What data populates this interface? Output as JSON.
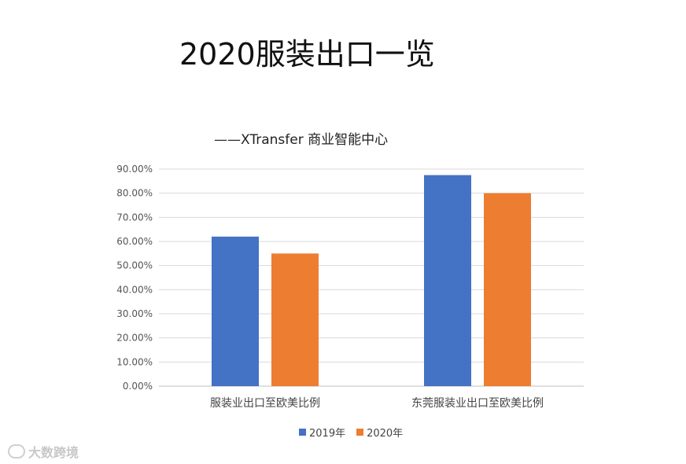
{
  "page": {
    "title": "2020服装出口一览",
    "subtitle": "——XTransfer 商业智能中心",
    "watermark": "大数跨境"
  },
  "chart_data": {
    "type": "bar",
    "categories": [
      "服装业出口至欧美比例",
      "东莞服装业出口至欧美比例"
    ],
    "series": [
      {
        "name": "2019年",
        "values": [
          62,
          87.5
        ],
        "color": "#4472C4"
      },
      {
        "name": "2020年",
        "values": [
          55,
          80
        ],
        "color": "#ED7D31"
      }
    ],
    "yticks": [
      "0.00%",
      "10.00%",
      "20.00%",
      "30.00%",
      "40.00%",
      "50.00%",
      "60.00%",
      "70.00%",
      "80.00%",
      "90.00%"
    ],
    "ylim": [
      0,
      90
    ],
    "ystep": 10,
    "grid": true,
    "legend_position": "bottom"
  }
}
